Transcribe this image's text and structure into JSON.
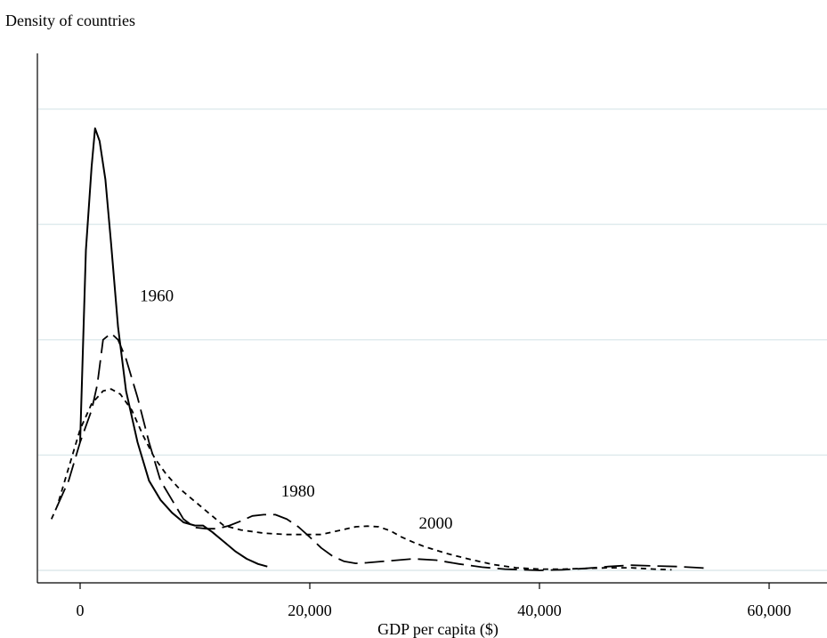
{
  "chart_data": {
    "type": "line",
    "ylabel": "Density of countries",
    "xlabel": "GDP per capita ($)",
    "xlim": [
      -2000,
      64000
    ],
    "ylim": [
      0,
      1.0
    ],
    "x_ticks": [
      0,
      20000,
      40000,
      60000
    ],
    "x_tick_labels": [
      "0",
      "20,000",
      "40,000",
      "60,000"
    ],
    "y_gridlines": [
      0,
      0.2,
      0.4,
      0.6,
      0.8
    ],
    "grid": "horizontal",
    "series": [
      {
        "name": "1960",
        "style": "solid",
        "points": [
          [
            0,
            0.2
          ],
          [
            500,
            0.5
          ],
          [
            1000,
            0.63
          ],
          [
            1300,
            0.69
          ],
          [
            1700,
            0.67
          ],
          [
            2200,
            0.61
          ],
          [
            2700,
            0.51
          ],
          [
            3300,
            0.38
          ],
          [
            4000,
            0.28
          ],
          [
            5000,
            0.2
          ],
          [
            6000,
            0.14
          ],
          [
            7000,
            0.11
          ],
          [
            8000,
            0.09
          ],
          [
            9000,
            0.075
          ],
          [
            10000,
            0.07
          ],
          [
            10700,
            0.07
          ],
          [
            11500,
            0.06
          ],
          [
            12500,
            0.045
          ],
          [
            13500,
            0.03
          ],
          [
            14500,
            0.018
          ],
          [
            15500,
            0.01
          ],
          [
            16300,
            0.006
          ]
        ]
      },
      {
        "name": "1980",
        "style": "dashed",
        "points": [
          [
            -2000,
            0.1
          ],
          [
            -1000,
            0.14
          ],
          [
            0,
            0.2
          ],
          [
            1000,
            0.25
          ],
          [
            1500,
            0.29
          ],
          [
            2000,
            0.36
          ],
          [
            2700,
            0.37
          ],
          [
            3300,
            0.36
          ],
          [
            4000,
            0.33
          ],
          [
            5000,
            0.27
          ],
          [
            6000,
            0.2
          ],
          [
            7000,
            0.14
          ],
          [
            8000,
            0.11
          ],
          [
            9000,
            0.08
          ],
          [
            10000,
            0.067
          ],
          [
            11000,
            0.065
          ],
          [
            12000,
            0.065
          ],
          [
            13000,
            0.07
          ],
          [
            14000,
            0.077
          ],
          [
            15000,
            0.085
          ],
          [
            16000,
            0.087
          ],
          [
            17000,
            0.087
          ],
          [
            18000,
            0.08
          ],
          [
            19000,
            0.068
          ],
          [
            20000,
            0.052
          ],
          [
            21000,
            0.035
          ],
          [
            22000,
            0.022
          ],
          [
            23000,
            0.014
          ],
          [
            24000,
            0.011
          ],
          [
            25000,
            0.012
          ],
          [
            27000,
            0.015
          ],
          [
            29000,
            0.018
          ],
          [
            31000,
            0.016
          ],
          [
            33000,
            0.01
          ],
          [
            35000,
            0.005
          ],
          [
            37000,
            0.002
          ],
          [
            40000,
            0.0
          ],
          [
            42000,
            0.001
          ],
          [
            44000,
            0.003
          ],
          [
            46000,
            0.006
          ],
          [
            48000,
            0.008
          ],
          [
            50000,
            0.007
          ],
          [
            52000,
            0.006
          ],
          [
            54000,
            0.004
          ],
          [
            54700,
            0.003
          ]
        ]
      },
      {
        "name": "2000",
        "style": "dotted",
        "points": [
          [
            -2500,
            0.08
          ],
          [
            -2000,
            0.1
          ],
          [
            -1000,
            0.16
          ],
          [
            0,
            0.22
          ],
          [
            1000,
            0.26
          ],
          [
            2000,
            0.28
          ],
          [
            2700,
            0.283
          ],
          [
            3500,
            0.275
          ],
          [
            4500,
            0.25
          ],
          [
            5500,
            0.21
          ],
          [
            6500,
            0.175
          ],
          [
            7500,
            0.15
          ],
          [
            8500,
            0.13
          ],
          [
            9500,
            0.115
          ],
          [
            10500,
            0.1
          ],
          [
            11500,
            0.085
          ],
          [
            12500,
            0.07
          ],
          [
            14000,
            0.063
          ],
          [
            16000,
            0.058
          ],
          [
            18000,
            0.056
          ],
          [
            20000,
            0.056
          ],
          [
            21000,
            0.056
          ],
          [
            22000,
            0.06
          ],
          [
            23000,
            0.064
          ],
          [
            24000,
            0.068
          ],
          [
            25000,
            0.069
          ],
          [
            26000,
            0.068
          ],
          [
            27000,
            0.062
          ],
          [
            28000,
            0.052
          ],
          [
            29000,
            0.044
          ],
          [
            30000,
            0.037
          ],
          [
            32000,
            0.026
          ],
          [
            34000,
            0.017
          ],
          [
            36000,
            0.009
          ],
          [
            38000,
            0.004
          ],
          [
            40000,
            0.002
          ],
          [
            42000,
            0.002
          ],
          [
            44000,
            0.003
          ],
          [
            46000,
            0.004
          ],
          [
            48000,
            0.004
          ],
          [
            50000,
            0.002
          ],
          [
            51500,
            0.001
          ]
        ]
      }
    ],
    "series_labels": [
      {
        "text": "1960",
        "x": 5200,
        "y": 0.42
      },
      {
        "text": "1980",
        "x": 17500,
        "y": 0.115
      },
      {
        "text": "2000",
        "x": 29500,
        "y": 0.065
      }
    ]
  }
}
